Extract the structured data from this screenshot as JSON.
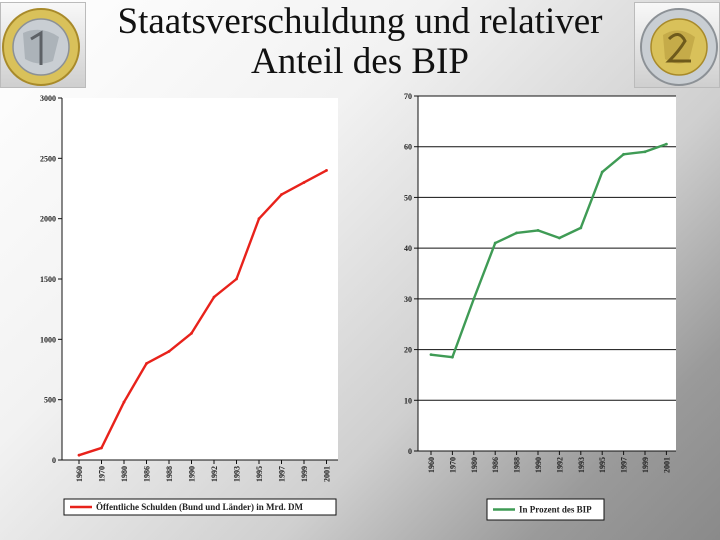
{
  "slide": {
    "title_line1": "Staatsverschuldung und relativer",
    "title_line2": "Anteil des BIP"
  },
  "chart_data": [
    {
      "type": "line",
      "x": [
        "1960",
        "1970",
        "1980",
        "1986",
        "1988",
        "1990",
        "1992",
        "1993",
        "1995",
        "1997",
        "1999",
        "2001"
      ],
      "series": [
        {
          "name": "Öffentliche Schulden (Bund und Länder) in Mrd. DM",
          "values": [
            40,
            100,
            480,
            800,
            900,
            1050,
            1350,
            1500,
            2000,
            2200,
            2300,
            2400
          ]
        }
      ],
      "ylim": [
        0,
        3000
      ],
      "yticks": [
        0,
        500,
        1000,
        1500,
        2000,
        2500,
        3000
      ],
      "grid": false,
      "legend": "bottom",
      "color": "#e8221b"
    },
    {
      "type": "line",
      "x": [
        "1960",
        "1970",
        "1980",
        "1986",
        "1988",
        "1990",
        "1992",
        "1993",
        "1995",
        "1997",
        "1999",
        "2001"
      ],
      "series": [
        {
          "name": "In Prozent des BIP",
          "values": [
            19,
            18.5,
            30,
            41,
            43,
            43.5,
            42,
            44,
            55,
            58.5,
            59,
            60.5
          ]
        }
      ],
      "ylim": [
        0,
        70
      ],
      "yticks": [
        0,
        10,
        20,
        30,
        40,
        50,
        60,
        70
      ],
      "grid": true,
      "legend": "bottom",
      "color": "#3f9b55"
    }
  ]
}
